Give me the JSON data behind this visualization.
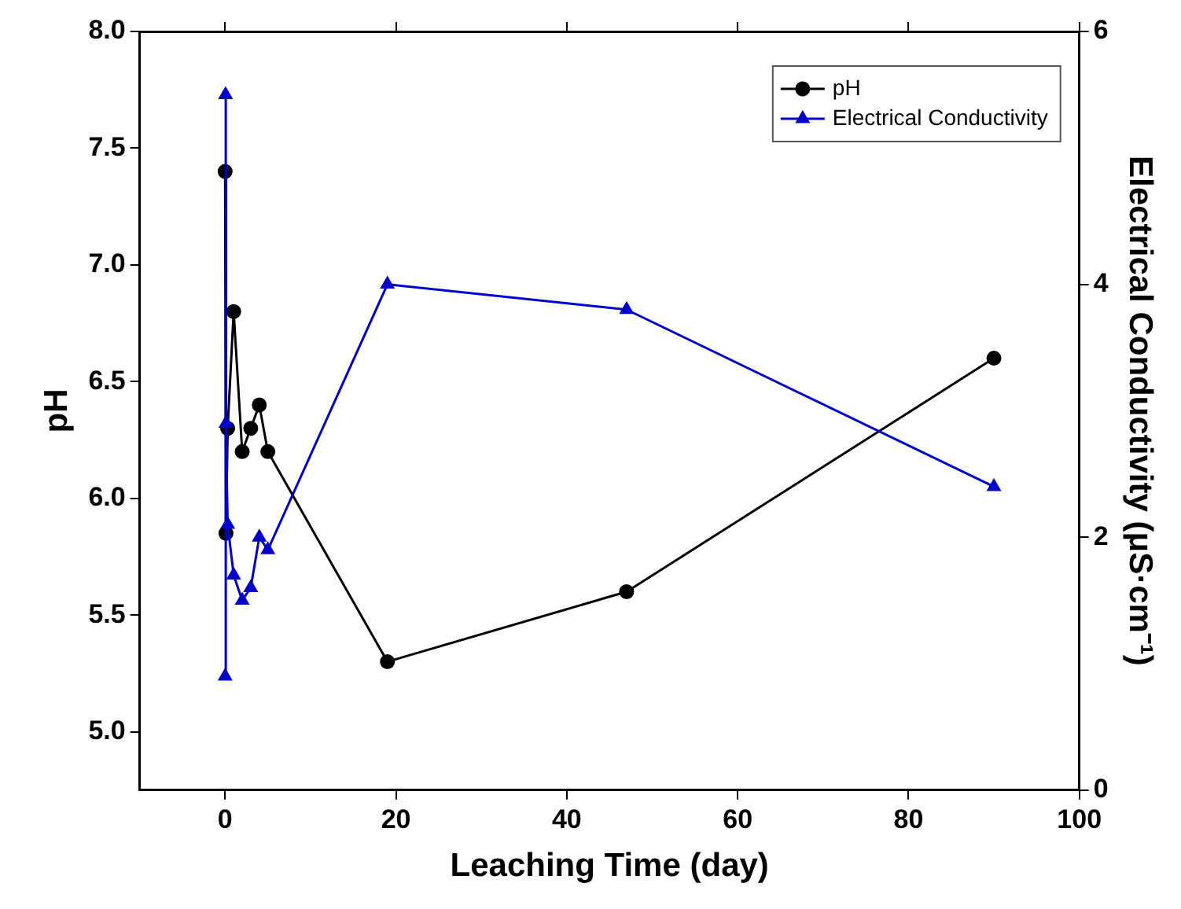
{
  "chart_data": {
    "type": "line",
    "xlabel": "Leaching Time (day)",
    "ylabel": "pH",
    "y2label": "Electrical Conductivity (μS·cm⁻¹)",
    "xlim": [
      -10,
      100
    ],
    "xticks": [
      0,
      20,
      40,
      60,
      80,
      100
    ],
    "ylim": [
      4.75,
      8.0
    ],
    "yticks": [
      {
        "value": 5.0,
        "label": "5.0"
      },
      {
        "value": 5.5,
        "label": "5.5"
      },
      {
        "value": 6.0,
        "label": "6.0"
      },
      {
        "value": 6.5,
        "label": "6.5"
      },
      {
        "value": 7.0,
        "label": "7.0"
      },
      {
        "value": 7.5,
        "label": "7.5"
      },
      {
        "value": 8.0,
        "label": "8.0"
      }
    ],
    "y2lim": [
      0,
      6
    ],
    "y2ticks": [
      0,
      2,
      4,
      6
    ],
    "legend": "top right",
    "grid": false,
    "line_style": "solid",
    "series": [
      {
        "name": "pH",
        "color": "#000000",
        "marker": "circle",
        "x": [
          0,
          0.1,
          0.3,
          1,
          2,
          3,
          4,
          5,
          19,
          47,
          90
        ],
        "values": [
          7.4,
          5.85,
          6.3,
          6.8,
          6.2,
          6.3,
          6.4,
          6.2,
          5.3,
          5.6,
          6.6
        ]
      },
      {
        "name": "Electrical Conductivity",
        "color": "#0000cc",
        "marker": "triangle",
        "axis": "y2",
        "x": [
          0,
          0.05,
          0.1,
          0.3,
          1,
          2,
          3,
          4,
          5,
          19,
          47,
          90
        ],
        "values": [
          0.9,
          5.5,
          2.9,
          2.1,
          1.7,
          1.5,
          1.6,
          2.0,
          1.9,
          4.0,
          3.8,
          2.4
        ]
      }
    ]
  }
}
